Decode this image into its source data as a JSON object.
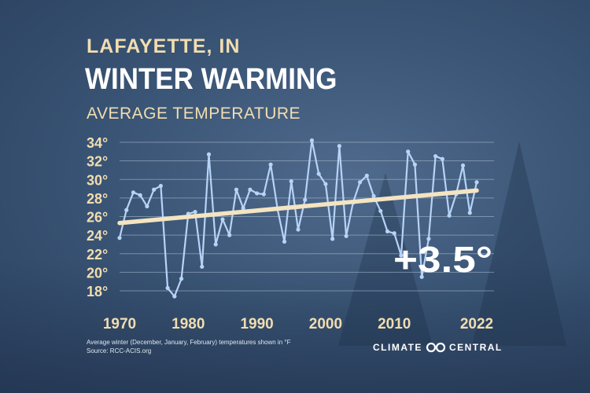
{
  "header": {
    "location": "LAFAYETTE, IN",
    "title": "WINTER WARMING",
    "subtitle": "AVERAGE TEMPERATURE"
  },
  "footer": {
    "note_line1": "Average winter (December, January, February) temperatures shown in °F",
    "note_line2": "Source: RCC-ACIS.org",
    "brand_left": "CLIMATE",
    "brand_right": "CENTRAL"
  },
  "colors": {
    "series_line": "#b7d3f7",
    "trend_line": "#f4e4c1",
    "label_text": "#f1ddb0",
    "grid": "#aebfd4"
  },
  "chart_data": {
    "type": "line",
    "title": "AVERAGE TEMPERATURE",
    "xlim": [
      1970,
      2022
    ],
    "ylim": [
      16,
      35
    ],
    "y_ticks": [
      18,
      20,
      22,
      24,
      26,
      28,
      30,
      32,
      34
    ],
    "y_tick_suffix": "°",
    "x_tick_labels": [
      "1970",
      "1980",
      "1990",
      "2000",
      "2010",
      "2022"
    ],
    "grid": "horizontal",
    "annotation": "+3.5°",
    "x": [
      1970,
      1971,
      1972,
      1973,
      1974,
      1975,
      1976,
      1977,
      1978,
      1979,
      1980,
      1981,
      1982,
      1983,
      1984,
      1985,
      1986,
      1987,
      1988,
      1989,
      1990,
      1991,
      1992,
      1993,
      1994,
      1995,
      1996,
      1997,
      1998,
      1999,
      2000,
      2001,
      2002,
      2003,
      2004,
      2005,
      2006,
      2007,
      2008,
      2009,
      2010,
      2011,
      2012,
      2013,
      2014,
      2015,
      2016,
      2017,
      2018,
      2019,
      2020,
      2021,
      2022
    ],
    "y": [
      23.7,
      26.7,
      28.6,
      28.3,
      27.1,
      28.9,
      29.3,
      18.3,
      17.4,
      19.3,
      26.3,
      26.5,
      20.6,
      32.7,
      23.0,
      25.7,
      24.0,
      28.9,
      26.9,
      28.9,
      28.5,
      28.4,
      31.6,
      26.8,
      23.3,
      29.8,
      24.6,
      27.8,
      34.2,
      30.6,
      29.5,
      23.6,
      33.6,
      23.9,
      27.5,
      29.7,
      30.4,
      28.2,
      26.6,
      24.4,
      24.2,
      21.8,
      33.0,
      31.6,
      19.5,
      23.6,
      32.5,
      32.2,
      26.1,
      28.4,
      31.5,
      26.4,
      29.7
    ],
    "trend": {
      "x": [
        1970,
        2022
      ],
      "y": [
        25.3,
        28.8
      ]
    }
  }
}
